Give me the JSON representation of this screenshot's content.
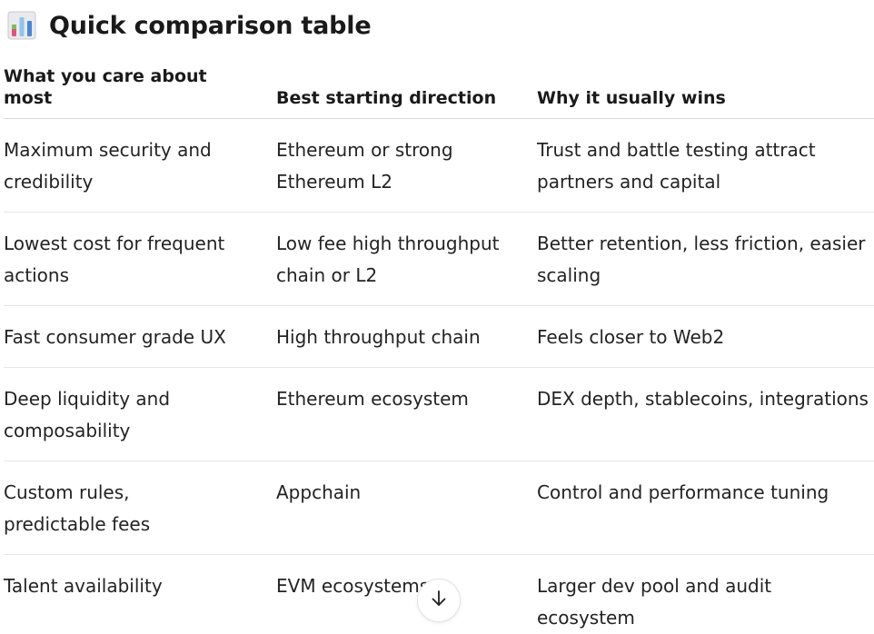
{
  "heading": {
    "icon": "bar-chart-icon",
    "title": "Quick comparison table"
  },
  "table": {
    "headers": [
      "What you care about most",
      "Best starting direction",
      "Why it usually wins"
    ],
    "rows": [
      [
        "Maximum security and credibility",
        "Ethereum or strong Ethereum L2",
        "Trust and battle testing attract partners and capital"
      ],
      [
        "Lowest cost for frequent actions",
        "Low fee high throughput chain or L2",
        "Better retention, less friction, easier scaling"
      ],
      [
        "Fast consumer grade UX",
        "High throughput chain",
        "Feels closer to Web2"
      ],
      [
        "Deep liquidity and composability",
        "Ethereum ecosystem",
        "DEX depth, stablecoins, integrations"
      ],
      [
        "Custom rules, predictable fees",
        "Appchain",
        "Control and performance tuning"
      ],
      [
        "Talent availability",
        "EVM ecosystems",
        "Larger dev pool and audit ecosystem"
      ]
    ]
  },
  "scroll_button": {
    "icon": "arrow-down-icon"
  }
}
